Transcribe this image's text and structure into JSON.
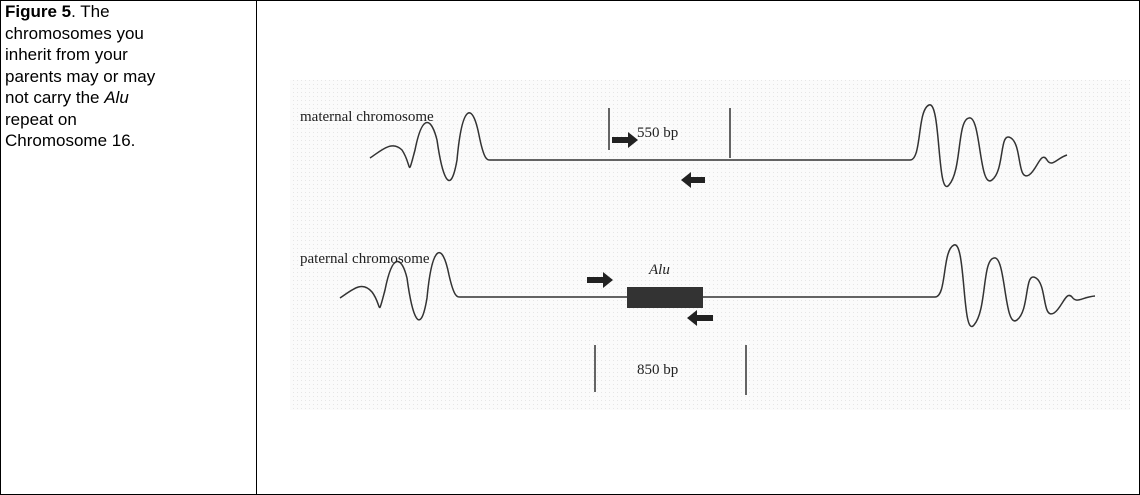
{
  "caption": {
    "label": "Figure 5",
    "text_before": ".  The chromosomes you inherit from your parents may or may not carry the ",
    "italic": "Alu",
    "text_after": " repeat on Chromosome 16."
  },
  "figure": {
    "maternal_label": "maternal chromosome",
    "maternal_size": "550 bp",
    "paternal_label": "paternal chromosome",
    "insert_label": "Alu",
    "paternal_size": "850 bp"
  }
}
